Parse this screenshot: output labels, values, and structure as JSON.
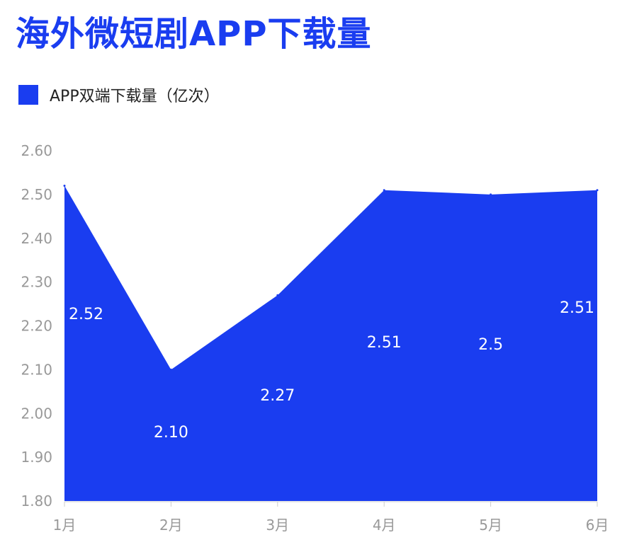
{
  "title": "海外微短剧APP下载量",
  "legend": {
    "label": "APP双端下载量（亿次）",
    "color": "#1a3df0"
  },
  "chart_data": {
    "type": "area",
    "title": "海外微短剧APP下载量",
    "categories": [
      "1月",
      "2月",
      "3月",
      "4月",
      "5月",
      "6月"
    ],
    "series": [
      {
        "name": "APP双端下载量（亿次）",
        "values": [
          2.52,
          2.1,
          2.27,
          2.51,
          2.5,
          2.51
        ],
        "labels": [
          "2.52",
          "2.10",
          "2.27",
          "2.51",
          "2.5",
          "2.51"
        ],
        "color": "#1a3df0"
      }
    ],
    "y_ticks": [
      "1.80",
      "1.90",
      "2.00",
      "2.10",
      "2.20",
      "2.30",
      "2.40",
      "2.50",
      "2.60"
    ],
    "ylim": [
      1.8,
      2.6
    ],
    "xlabel": "",
    "ylabel": "",
    "grid": false,
    "legend_position": "top-left"
  }
}
